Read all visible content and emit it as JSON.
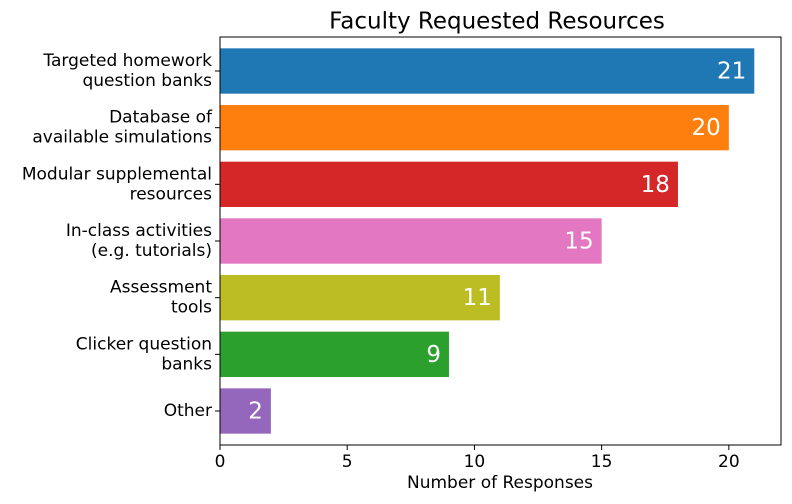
{
  "chart_data": {
    "type": "barh",
    "title": "Faculty Requested Resources",
    "categories": [
      "Targeted homework\nquestion banks",
      "Database of\navailable simulations",
      "Modular supplemental\nresources",
      "In-class activities\n(e.g. tutorials)",
      "Assessment\ntools",
      "Clicker question\nbanks",
      "Other"
    ],
    "values": [
      21,
      20,
      18,
      15,
      11,
      9,
      2
    ],
    "colors": [
      "#1f77b4",
      "#ff7f0e",
      "#d62728",
      "#e377c2",
      "#bcbd22",
      "#2ca02c",
      "#9467bd"
    ],
    "xlabel": "Number of Responses",
    "xlim": [
      0,
      22.05
    ],
    "xticks": [
      0,
      5,
      10,
      15,
      20
    ],
    "grid": false
  }
}
